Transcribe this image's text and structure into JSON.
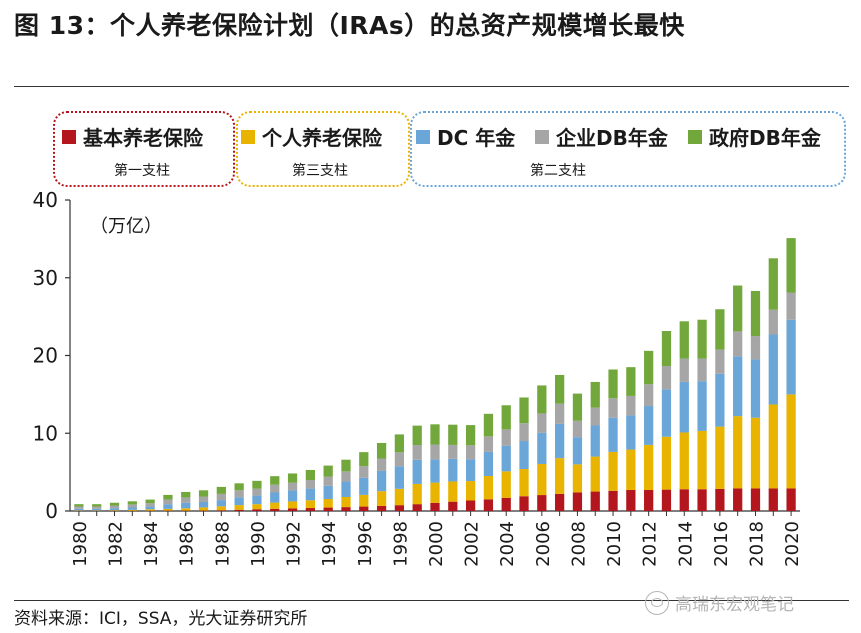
{
  "title": "图 13：个人养老保险计划（IRAs）的总资产规模增长最快",
  "source": "资料来源：ICI，SSA，光大证券研究所",
  "watermark": "高瑞东宏观笔记",
  "legend_groups": [
    {
      "label": "第一支柱",
      "color": "#b3171d"
    },
    {
      "label": "第三支柱",
      "color": "#e8b400"
    },
    {
      "label": "第二支柱",
      "color": "#6aa6d8"
    }
  ],
  "chart_data": {
    "type": "bar",
    "stacked": true,
    "unit": "（万亿）",
    "ylim": [
      0,
      40
    ],
    "yticks": [
      0,
      10,
      20,
      30,
      40
    ],
    "x": [
      1980,
      1981,
      1982,
      1983,
      1984,
      1985,
      1986,
      1987,
      1988,
      1989,
      1990,
      1991,
      1992,
      1993,
      1994,
      1995,
      1996,
      1997,
      1998,
      1999,
      2000,
      2001,
      2002,
      2003,
      2004,
      2005,
      2006,
      2007,
      2008,
      2009,
      2010,
      2011,
      2012,
      2013,
      2014,
      2015,
      2016,
      2017,
      2018,
      2019,
      2020
    ],
    "xtick_labels": [
      "1980",
      "1982",
      "1984",
      "1986",
      "1988",
      "1990",
      "1992",
      "1994",
      "1996",
      "1998",
      "2000",
      "2002",
      "2004",
      "2006",
      "2008",
      "2010",
      "2012",
      "2014",
      "2016",
      "2018",
      "2020"
    ],
    "series": [
      {
        "name": "基本养老保险",
        "color": "#b3171d",
        "values": [
          0.03,
          0.03,
          0.03,
          0.03,
          0.04,
          0.05,
          0.05,
          0.06,
          0.1,
          0.16,
          0.23,
          0.28,
          0.33,
          0.38,
          0.44,
          0.5,
          0.57,
          0.65,
          0.75,
          0.88,
          1.05,
          1.2,
          1.35,
          1.5,
          1.7,
          1.9,
          2.05,
          2.2,
          2.4,
          2.5,
          2.6,
          2.7,
          2.7,
          2.75,
          2.8,
          2.8,
          2.85,
          2.9,
          2.9,
          2.9,
          2.9
        ]
      },
      {
        "name": "个人养老保险",
        "color": "#e8b400",
        "values": [
          0.05,
          0.05,
          0.08,
          0.12,
          0.18,
          0.22,
          0.3,
          0.4,
          0.5,
          0.6,
          0.65,
          0.8,
          0.9,
          1.0,
          1.1,
          1.3,
          1.5,
          1.9,
          2.1,
          2.6,
          2.6,
          2.6,
          2.5,
          3.0,
          3.4,
          3.5,
          4.0,
          4.6,
          3.6,
          4.5,
          5.0,
          5.2,
          5.8,
          6.8,
          7.3,
          7.5,
          8.0,
          9.3,
          9.1,
          10.8,
          12.1
        ]
      },
      {
        "name": "DC 年金",
        "color": "#6aa6d8",
        "values": [
          0.2,
          0.2,
          0.25,
          0.3,
          0.35,
          0.6,
          0.7,
          0.7,
          0.8,
          1.0,
          1.1,
          1.3,
          1.4,
          1.5,
          1.7,
          2.0,
          2.2,
          2.6,
          2.9,
          3.1,
          3.0,
          2.9,
          2.8,
          3.1,
          3.3,
          3.6,
          4.0,
          4.4,
          3.5,
          4.0,
          4.4,
          4.4,
          5.0,
          6.1,
          6.5,
          6.4,
          6.8,
          7.7,
          7.5,
          9.0,
          9.6
        ]
      },
      {
        "name": "企业DB年金",
        "color": "#a6a6a6",
        "values": [
          0.3,
          0.3,
          0.35,
          0.4,
          0.45,
          0.6,
          0.7,
          0.7,
          0.8,
          0.9,
          0.9,
          1.0,
          1.0,
          1.1,
          1.2,
          1.3,
          1.5,
          1.6,
          1.8,
          1.9,
          1.9,
          1.8,
          1.8,
          2.0,
          2.1,
          2.3,
          2.5,
          2.6,
          2.1,
          2.3,
          2.5,
          2.5,
          2.8,
          3.0,
          3.0,
          2.9,
          3.1,
          3.2,
          3.0,
          3.2,
          3.5
        ]
      },
      {
        "name": "政府DB年金",
        "color": "#72a83b",
        "values": [
          0.3,
          0.3,
          0.35,
          0.4,
          0.45,
          0.6,
          0.7,
          0.8,
          0.9,
          0.9,
          1.0,
          1.1,
          1.2,
          1.3,
          1.4,
          1.5,
          1.8,
          2.0,
          2.3,
          2.5,
          2.6,
          2.6,
          2.6,
          2.9,
          3.1,
          3.3,
          3.6,
          3.7,
          3.5,
          3.3,
          3.7,
          3.7,
          4.3,
          4.5,
          4.8,
          5.0,
          5.2,
          5.9,
          5.8,
          6.6,
          7.0
        ]
      }
    ]
  }
}
